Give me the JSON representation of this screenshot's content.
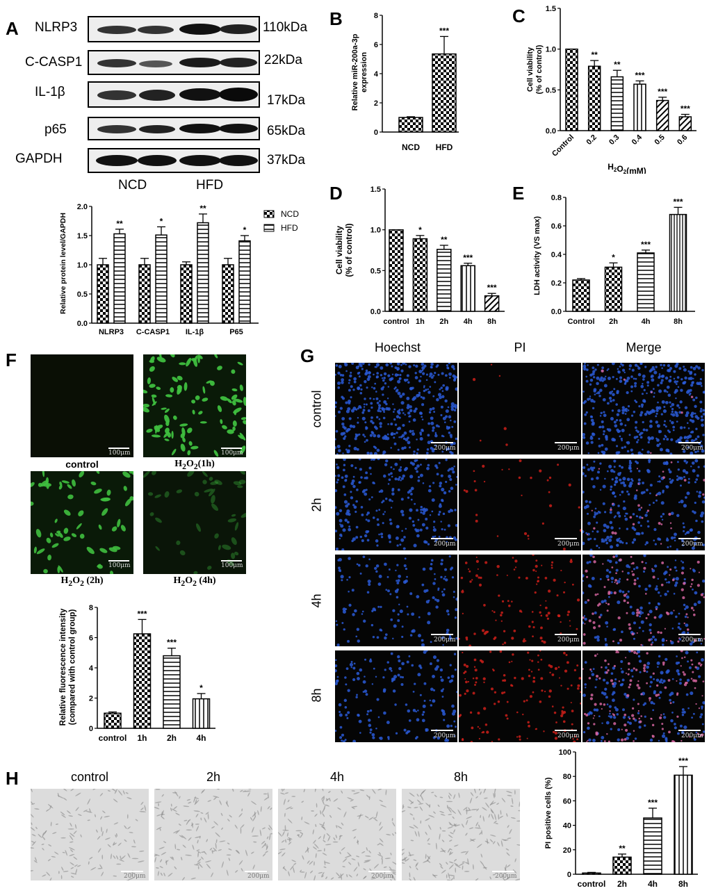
{
  "panels": {
    "A": "A",
    "B": "B",
    "C": "C",
    "D": "D",
    "E": "E",
    "F": "F",
    "G": "G",
    "H": "H"
  },
  "western": {
    "rows": [
      {
        "name": "NLRP3",
        "kda": "110kDa"
      },
      {
        "name": "C-CASP1",
        "kda": "22kDa"
      },
      {
        "name": "IL-1β",
        "kda": "17kDa"
      },
      {
        "name": "p65",
        "kda": "65kDa"
      },
      {
        "name": "GAPDH",
        "kda": "37kDa"
      }
    ],
    "groups": [
      "NCD",
      "HFD"
    ]
  },
  "microscopy_F": {
    "scale": "100μm",
    "captions": {
      "control": "control",
      "h1_base": "H",
      "h1_sub": "2",
      "h1_o": "O",
      "h1_sub2": "2",
      "h1_rest": "(1h)",
      "h2_base": "H",
      "h2_sub": "2",
      "h2_o": "O",
      "h2_sub2": "2",
      "h2_rest": " (2h)",
      "h4_base": "H",
      "h4_sub": "2",
      "h4_o": "O",
      "h4_sub2": "2",
      "h4_rest": " (4h)"
    }
  },
  "microscopy_G": {
    "columns": [
      "Hoechst",
      "PI",
      "Merge"
    ],
    "rows": [
      "control",
      "2h",
      "4h",
      "8h"
    ],
    "scale": "200μm"
  },
  "microscopy_H": {
    "columns": [
      "control",
      "2h",
      "4h",
      "8h"
    ],
    "scale": "200μm"
  },
  "colors": {
    "bar_stroke": "#000000",
    "blue_nuclei": "#2a5bd7",
    "red_nuclei": "#d8201a",
    "green_cells": "#3fbf3f"
  },
  "chart_data": [
    {
      "id": "A-bar",
      "type": "bar",
      "categories": [
        "NLRP3",
        "C-CASP1",
        "IL-1β",
        "P65"
      ],
      "series": [
        {
          "name": "NCD",
          "values": [
            1.0,
            1.0,
            1.0,
            1.0
          ],
          "err": [
            0.11,
            0.11,
            0.05,
            0.11
          ],
          "sig": [
            "",
            "",
            "",
            ""
          ]
        },
        {
          "name": "HFD",
          "values": [
            1.53,
            1.51,
            1.72,
            1.41
          ],
          "err": [
            0.08,
            0.14,
            0.15,
            0.09
          ],
          "sig": [
            "**",
            "*",
            "**",
            "*"
          ]
        }
      ],
      "ylabel": "Relative protein level/GAPDH",
      "ylim": [
        0,
        2.0
      ],
      "yticks": [
        0.0,
        0.5,
        1.0,
        1.5,
        2.0
      ],
      "legend": "top-right"
    },
    {
      "id": "B-bar",
      "type": "bar",
      "categories": [
        "NCD",
        "HFD"
      ],
      "values": [
        1.0,
        5.35
      ],
      "err": [
        0.05,
        1.2
      ],
      "sig": [
        "",
        "***"
      ],
      "ylabel": "Relative miR-200a-3p expression",
      "ylim": [
        0,
        8
      ],
      "yticks": [
        0,
        2,
        4,
        6,
        8
      ]
    },
    {
      "id": "C-bar",
      "type": "bar",
      "categories": [
        "Control",
        "0.2",
        "0.3",
        "0.4",
        "0.5",
        "0.6"
      ],
      "values": [
        1.0,
        0.79,
        0.66,
        0.57,
        0.37,
        0.17
      ],
      "err": [
        0,
        0.07,
        0.08,
        0.04,
        0.04,
        0.03
      ],
      "sig": [
        "",
        "**",
        "**",
        "***",
        "***",
        "***"
      ],
      "ylabel": "Cell viability (% of control)",
      "xlabel_base": "H",
      "xlabel_sub": "2",
      "xlabel_mid": "O",
      "xlabel_sub2": "2",
      "xlabel_rest": "(mM)",
      "ylim": [
        0,
        1.5
      ],
      "yticks": [
        0.0,
        0.5,
        1.0,
        1.5
      ]
    },
    {
      "id": "D-bar",
      "type": "bar",
      "categories": [
        "control",
        "1h",
        "2h",
        "4h",
        "8h"
      ],
      "values": [
        1.0,
        0.89,
        0.76,
        0.56,
        0.19
      ],
      "err": [
        0,
        0.04,
        0.05,
        0.03,
        0.03
      ],
      "sig": [
        "",
        "*",
        "**",
        "***",
        "***"
      ],
      "ylabel": "Cell viability (% of control)",
      "ylim": [
        0,
        1.5
      ],
      "yticks": [
        0.0,
        0.5,
        1.0,
        1.5
      ]
    },
    {
      "id": "E-bar",
      "type": "bar",
      "categories": [
        "Control",
        "2h",
        "4h",
        "8h"
      ],
      "values": [
        0.22,
        0.31,
        0.41,
        0.68
      ],
      "err": [
        0.01,
        0.03,
        0.02,
        0.05
      ],
      "sig": [
        "",
        "*",
        "***",
        "***"
      ],
      "ylabel": "LDH activity (VS max)",
      "ylim": [
        0,
        0.8
      ],
      "yticks": [
        0.0,
        0.2,
        0.4,
        0.6,
        0.8
      ]
    },
    {
      "id": "F-bar",
      "type": "bar",
      "categories": [
        "control",
        "1h",
        "2h",
        "4h"
      ],
      "values": [
        1.0,
        6.25,
        4.8,
        1.95
      ],
      "err": [
        0.08,
        0.95,
        0.5,
        0.35
      ],
      "sig": [
        "",
        "***",
        "***",
        "*"
      ],
      "ylabel": "Relative fluorescence intensity (compared with control group)",
      "ylim": [
        0,
        8
      ],
      "yticks": [
        0,
        2,
        4,
        6,
        8
      ]
    },
    {
      "id": "G-bar",
      "type": "bar",
      "categories": [
        "control",
        "2h",
        "4h",
        "8h"
      ],
      "values": [
        1,
        14,
        46,
        81
      ],
      "err": [
        0.5,
        2.5,
        8,
        7
      ],
      "sig": [
        "",
        "**",
        "***",
        "***"
      ],
      "ylabel": "PI positive cells (%)",
      "ylim": [
        0,
        100
      ],
      "yticks": [
        0,
        20,
        40,
        60,
        80,
        100
      ]
    }
  ]
}
